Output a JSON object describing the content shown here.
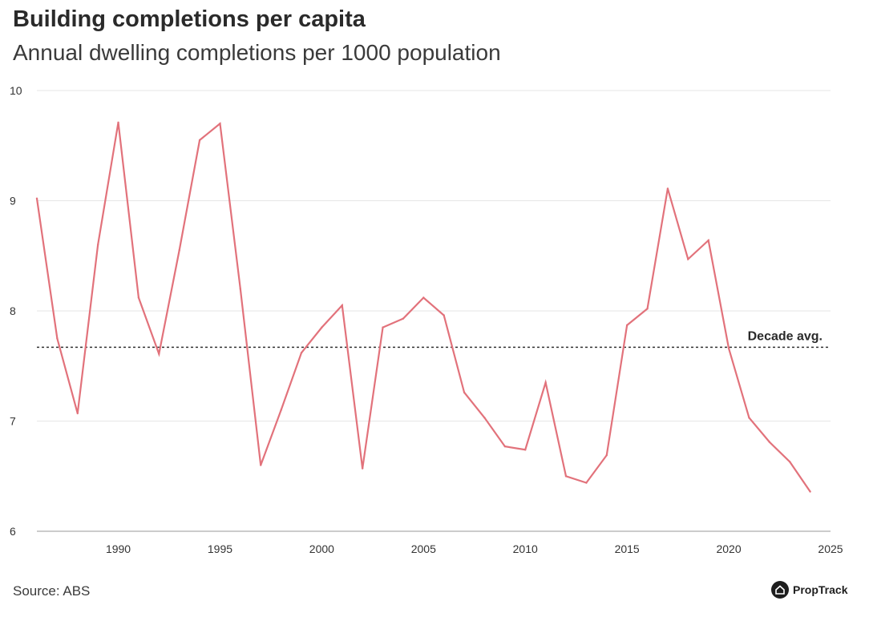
{
  "chart_data": {
    "type": "line",
    "title": "Building completions per capita",
    "subtitle": "Annual dwelling completions per 1000 population",
    "xlabel": "",
    "ylabel": "",
    "xlim": [
      1986,
      2025
    ],
    "ylim": [
      6,
      10
    ],
    "x_ticks": [
      1990,
      1995,
      2000,
      2005,
      2010,
      2015,
      2020,
      2025
    ],
    "y_ticks": [
      6,
      7,
      8,
      9,
      10
    ],
    "grid": true,
    "series": [
      {
        "name": "Completions per 1000 population",
        "color": "#e2727b",
        "x": [
          1986,
          1987,
          1988,
          1989,
          1990,
          1991,
          1992,
          1993,
          1994,
          1995,
          1996,
          1997,
          1998,
          1999,
          2000,
          2001,
          2002,
          2003,
          2004,
          2005,
          2006,
          2007,
          2008,
          2009,
          2010,
          2011,
          2012,
          2013,
          2014,
          2015,
          2016,
          2017,
          2018,
          2019,
          2020,
          2021,
          2022,
          2023,
          2024
        ],
        "values": [
          9.02,
          7.75,
          7.07,
          8.6,
          9.71,
          8.12,
          7.61,
          8.55,
          9.55,
          9.7,
          8.2,
          6.6,
          7.1,
          7.62,
          7.85,
          8.05,
          6.57,
          7.85,
          7.93,
          8.12,
          7.96,
          7.26,
          7.03,
          6.77,
          6.74,
          7.35,
          6.5,
          6.44,
          6.69,
          7.87,
          8.02,
          9.11,
          8.47,
          8.64,
          7.66,
          7.03,
          6.81,
          6.63,
          6.36
        ]
      }
    ],
    "reference_line": {
      "label": "Decade avg.",
      "value": 7.67,
      "style": "dashed"
    },
    "source": "Source: ABS"
  },
  "brand": {
    "name": "PropTrack"
  }
}
